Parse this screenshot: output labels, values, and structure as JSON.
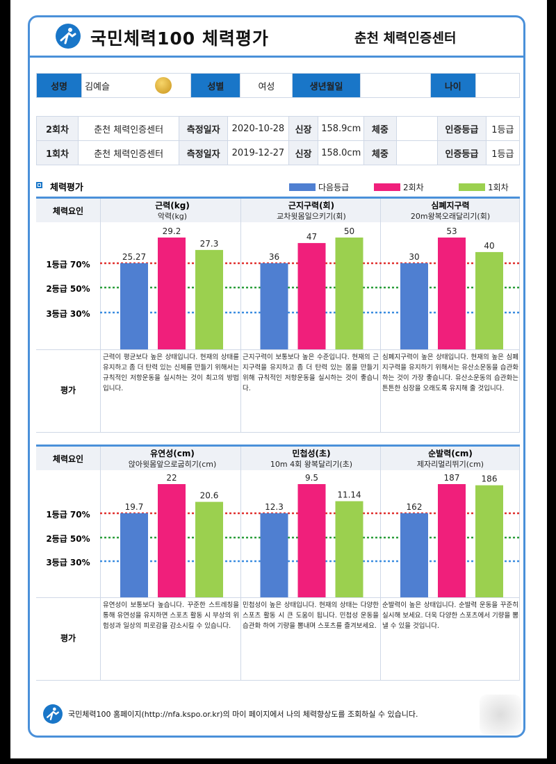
{
  "header": {
    "title": "국민체력100  체력평가",
    "center": "춘천 체력인증센터"
  },
  "person": {
    "name_label": "성명",
    "name": "김예슬",
    "gender_label": "성별",
    "gender": "여성",
    "birth_label": "생년월일",
    "birth": "",
    "age_label": "나이",
    "age": ""
  },
  "visits": [
    {
      "round": "2회차",
      "center": "춘천 체력인증센터",
      "date_label": "측정일자",
      "date": "2020-10-28",
      "height_label": "신장",
      "height": "158.9cm",
      "weight_label": "체중",
      "weight": "",
      "grade_label": "인증등급",
      "grade": "1등급"
    },
    {
      "round": "1회차",
      "center": "춘천 체력인증센터",
      "date_label": "측정일자",
      "date": "2019-12-27",
      "height_label": "신장",
      "height": "158.0cm",
      "weight_label": "체중",
      "weight": "",
      "grade_label": "인증등급",
      "grade": "1등급"
    }
  ],
  "section": {
    "title": "체력평가"
  },
  "legend": [
    {
      "label": "다음등급",
      "color": "#4f7fd1"
    },
    {
      "label": "2회차",
      "color": "#f01f7b"
    },
    {
      "label": "1회차",
      "color": "#9bd04f"
    }
  ],
  "labels": {
    "factor": "체력요인",
    "eval": "평가",
    "grade1": "1등급 70%",
    "grade2": "2등급 50%",
    "grade3": "3등급 30%"
  },
  "chart_data": [
    {
      "type": "bar",
      "title": "근력(kg)",
      "subtitle": "악력(kg)",
      "categories": [
        "다음등급",
        "2회차",
        "1회차"
      ],
      "values": [
        25.27,
        29.2,
        27.3
      ],
      "value_labels": [
        "25.27",
        "29.2",
        "27.3"
      ],
      "reference": 25.27,
      "max": 29.2,
      "eval": "근력이 평균보다 높은 상태입니다. 현재의 상태를 유지하고 좀 더 탄력 있는 신체를 만들기 위해서는 규칙적인 저항운동을 실시하는 것이 최고의 방법입니다."
    },
    {
      "type": "bar",
      "title": "근지구력(회)",
      "subtitle": "교차윗몸일으키기(회)",
      "categories": [
        "다음등급",
        "2회차",
        "1회차"
      ],
      "values": [
        36,
        47,
        50
      ],
      "value_labels": [
        "36",
        "47",
        "50"
      ],
      "reference": 36,
      "max": 50,
      "eval": "근지구력이 보통보다 높은 수준입니다. 현재의 근지구력을 유지하고 좀 더 탄력 있는 몸을 만들기 위해 규칙적인 저항운동을 실시하는 것이 좋습니다."
    },
    {
      "type": "bar",
      "title": "심폐지구력",
      "subtitle": "20m왕복오래달리기(회)",
      "categories": [
        "다음등급",
        "2회차",
        "1회차"
      ],
      "values": [
        30,
        53,
        40
      ],
      "value_labels": [
        "30",
        "53",
        "40"
      ],
      "reference": 30,
      "max": 53,
      "eval": "심폐지구력이 높은 상태입니다. 현재의 높은 심폐지구력을 유지하기 위해서는 유산소운동을 습관화 하는 것이 가장 좋습니다. 유산소운동의 습관화는 튼튼한 심장을 오래도록 유지해 줄 것입니다."
    },
    {
      "type": "bar",
      "title": "유연성(cm)",
      "subtitle": "앉아윗몸앞으로굽히기(cm)",
      "categories": [
        "다음등급",
        "2회차",
        "1회차"
      ],
      "values": [
        19.7,
        22,
        20.6
      ],
      "value_labels": [
        "19.7",
        "22",
        "20.6"
      ],
      "reference": 19.7,
      "max": 22,
      "eval": "유연성이 보통보다 높습니다. 꾸준한 스트레칭을 통해 유연성을 유지하면 스포츠 활동 시 부상의 위험성과 일상의 피로감을 감소시킬 수 있습니다."
    },
    {
      "type": "bar",
      "title": "민첩성(초)",
      "subtitle": "10m 4회 왕복달리기(초)",
      "categories": [
        "다음등급",
        "2회차",
        "1회차"
      ],
      "values": [
        12.3,
        9.5,
        11.14
      ],
      "value_labels": [
        "12.3",
        "9.5",
        "11.14"
      ],
      "reference": 12.3,
      "max": 9.5,
      "eval": "민첩성이 높은 상태입니다. 현재의 상태는 다양한 스포츠 활동 시 큰 도움이 됩니다. 민첩성 운동을 습관화 하여 기량을 뽐내며 스포츠를 즐겨보세요."
    },
    {
      "type": "bar",
      "title": "순발력(cm)",
      "subtitle": "제자리멀리뛰기(cm)",
      "categories": [
        "다음등급",
        "2회차",
        "1회차"
      ],
      "values": [
        162,
        187,
        186
      ],
      "value_labels": [
        "162",
        "187",
        "186"
      ],
      "reference": 162,
      "max": 187,
      "eval": "순발력이 높은 상태입니다. 순발력 운동을 꾸준히 실시해 보세요. 더욱 다양한 스포츠에서 기량을 뽐낼 수 있을 것입니다."
    }
  ],
  "footer": {
    "text": "국민체력100 홈페이지(http://nfa.kspo.or.kr)의 마이 페이지에서 나의 체력향상도를 조회하실 수 있습니다."
  }
}
